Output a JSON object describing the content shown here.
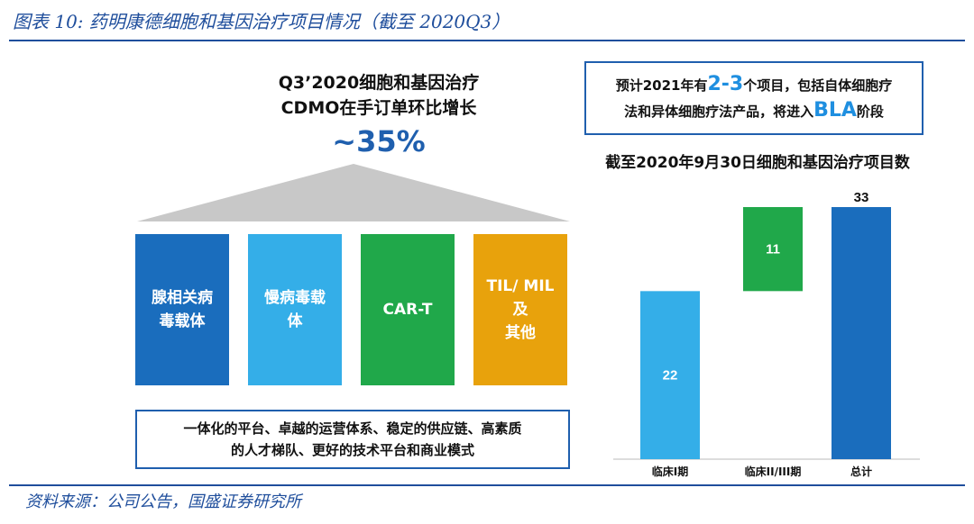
{
  "figure_title": "图表 10: 药明康德细胞和基因治疗项目情况（截至 2020Q3）",
  "headline": {
    "line1": "Q3’2020细胞和基因治疗",
    "line2": "CDMO在手订单环比增长",
    "growth": "~35%"
  },
  "pillars": [
    {
      "line1": "腺相关病",
      "line2": "毒载体",
      "color": "#1a6dbd"
    },
    {
      "line1": "慢病毒载",
      "line2": "体",
      "color": "#34aee8"
    },
    {
      "line1": "CAR-T",
      "line2": "",
      "color": "#20a84a"
    },
    {
      "line1": "TIL/ MIL及",
      "line2": "其他",
      "color": "#e8a20c"
    }
  ],
  "base": {
    "line1": "一体化的平台、卓越的运营体系、稳定的供应链、高素质",
    "line2": "的人才梯队、更好的技术平台和商业模式"
  },
  "note": {
    "l1_a": "预计2021年有",
    "l1_b": "2-3",
    "l1_c": "个项目，包括自体细胞疗",
    "l2_a": "法和异体细胞疗法产品，将进入",
    "l2_b": "BLA",
    "l2_c": "阶段"
  },
  "chart_data": {
    "type": "bar",
    "title": "截至2020年9月30日细胞和基因治疗项目数",
    "categories": [
      "临床I期",
      "临床II/III期",
      "总计"
    ],
    "values": [
      22,
      11,
      33
    ],
    "bar_kind": [
      "base",
      "increment",
      "total"
    ],
    "colors": [
      "#34aee8",
      "#20a84a",
      "#1a6dbd"
    ],
    "ylim": [
      0,
      33
    ]
  },
  "source": "资料来源：公司公告，国盛证券研究所"
}
